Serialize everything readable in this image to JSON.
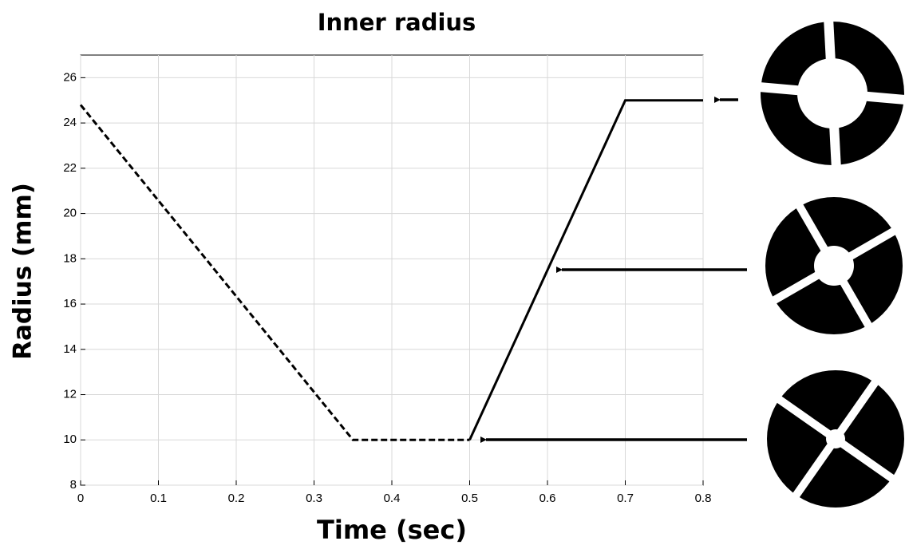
{
  "chart_data": {
    "type": "line",
    "title": "Inner radius",
    "xlabel": "Time (sec)",
    "ylabel": "Radius (mm)",
    "xlim": [
      0,
      0.8
    ],
    "xticks": [
      0,
      0.1,
      0.2,
      0.3,
      0.4,
      0.5,
      0.6,
      0.7,
      0.8
    ],
    "ylim": [
      8,
      27
    ],
    "yticks": [
      8,
      10,
      12,
      14,
      16,
      18,
      20,
      22,
      24,
      26
    ],
    "grid": true,
    "series": [
      {
        "color": "#000000",
        "style": "dashed",
        "x": [
          0,
          0.35,
          0.5
        ],
        "values": [
          24.8,
          10,
          10
        ]
      },
      {
        "color": "#000000",
        "style": "solid",
        "x": [
          0.5,
          0.7,
          0.8
        ],
        "values": [
          10,
          25,
          25
        ]
      }
    ]
  }
}
